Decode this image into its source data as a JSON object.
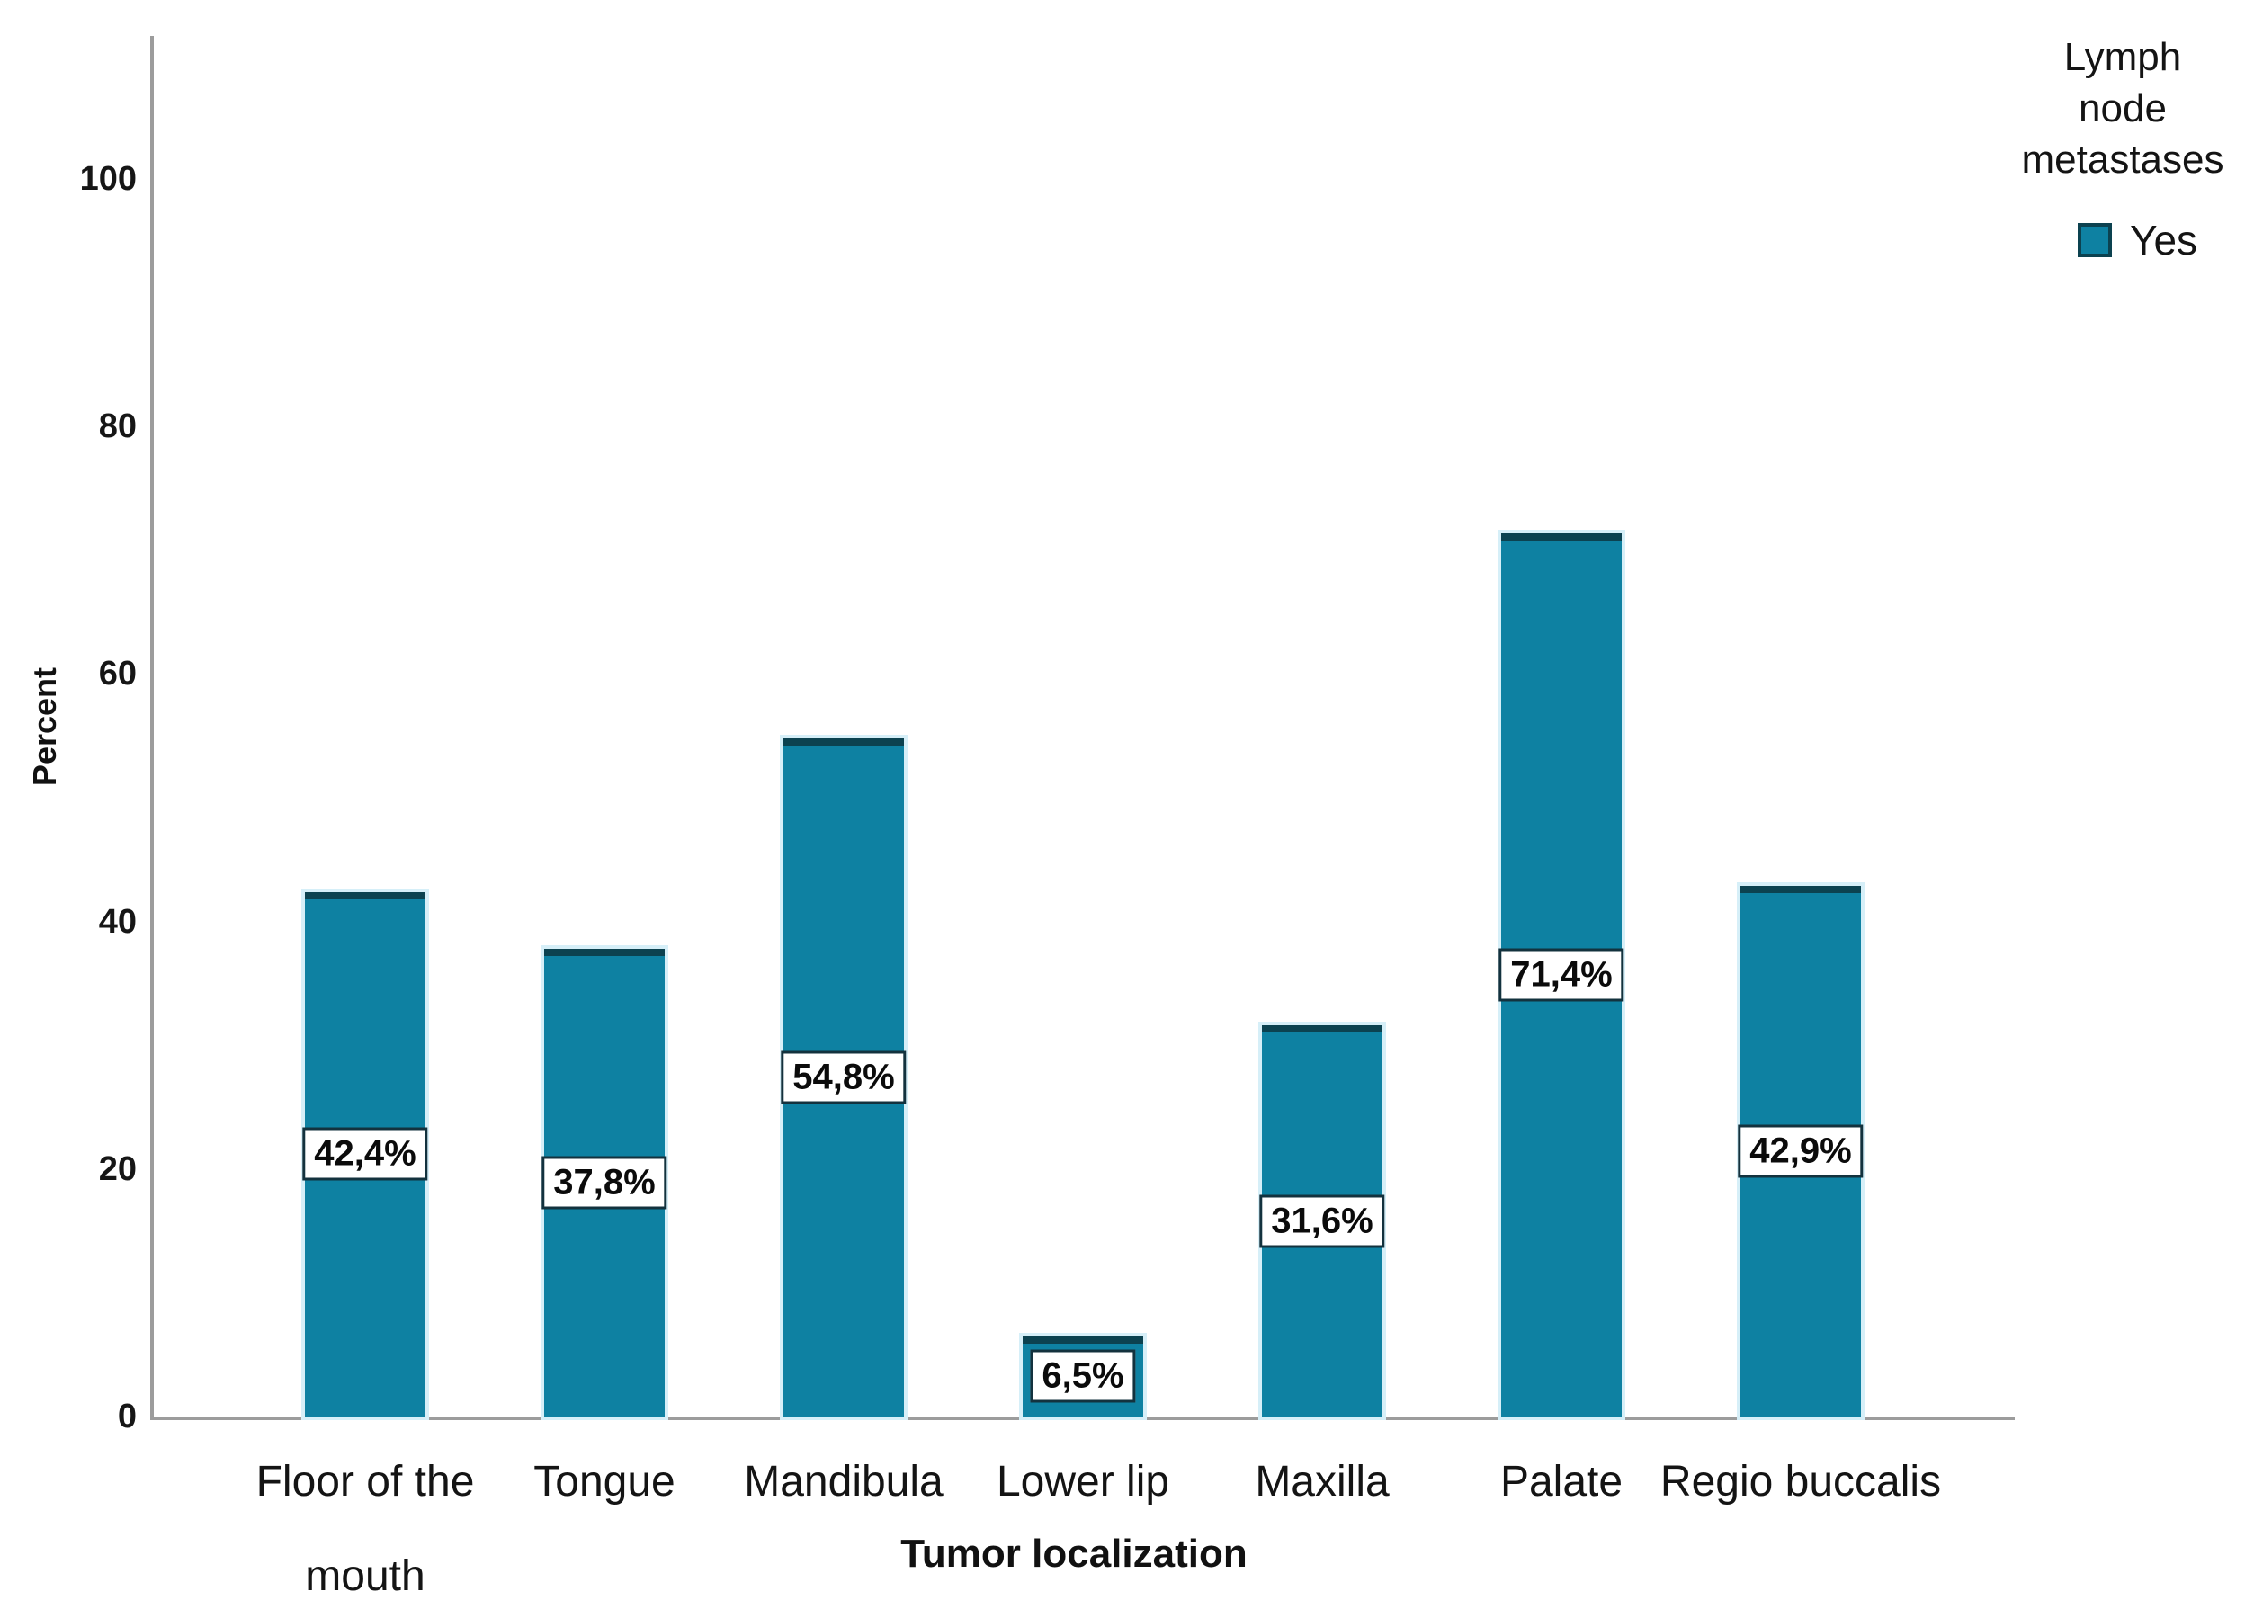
{
  "chart_data": {
    "type": "bar",
    "categories": [
      "Floor of the\nmouth",
      "Tongue",
      "Mandibula",
      "Lower lip",
      "Maxilla",
      "Palate",
      "Regio buccalis"
    ],
    "values": [
      42.4,
      37.8,
      54.8,
      6.5,
      31.6,
      71.4,
      42.9
    ],
    "value_labels": [
      "42,4%",
      "37,8%",
      "54,8%",
      "6,5%",
      "31,6%",
      "71,4%",
      "42,9%"
    ],
    "xlabel": "Tumor localization",
    "ylabel": "Percent",
    "yticks": [
      0,
      20,
      40,
      60,
      80,
      100
    ],
    "ylim": [
      0,
      111
    ],
    "grid": false,
    "legend": {
      "position": "top-right",
      "title_lines": [
        "Lymph",
        "node",
        "metastases"
      ],
      "items": [
        {
          "label": "Yes",
          "color": "#0e81a2"
        }
      ]
    },
    "colors": {
      "bar_fill": "#0e81a2",
      "bar_edge": "#0c4250",
      "bar_halo": "#d6eff8",
      "axis_line": "#9c9c9c",
      "text": "#141414",
      "value_box_bg": "#ffffff",
      "value_box_border": "#13323e"
    }
  }
}
